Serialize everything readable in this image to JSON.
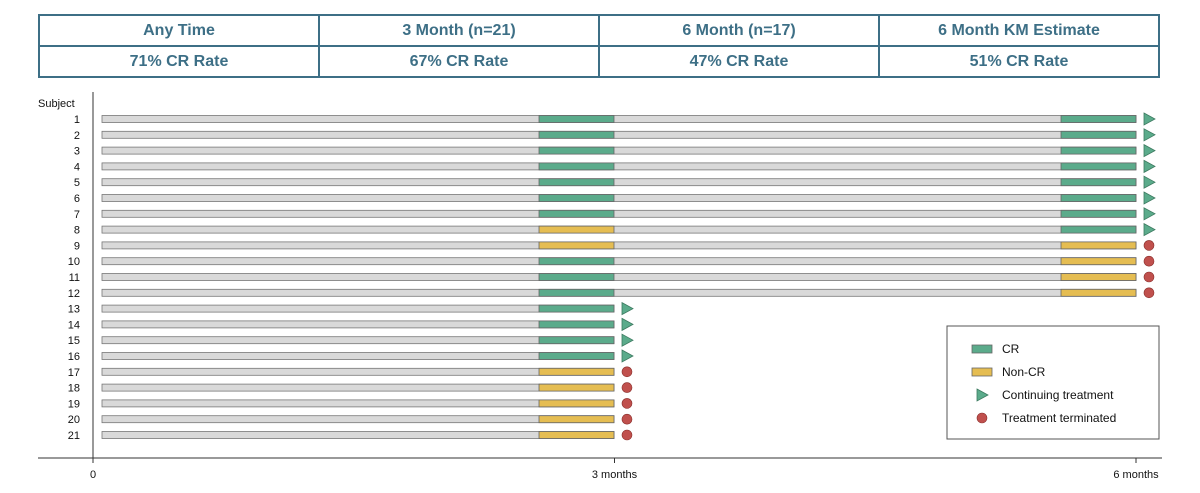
{
  "summary": {
    "headers": [
      "Any Time",
      "3 Month (n=21)",
      "6 Month (n=17)",
      "6 Month KM Estimate"
    ],
    "rates": [
      "71% CR Rate",
      "67% CR Rate",
      "47% CR Rate",
      "51% CR Rate"
    ]
  },
  "chart_data": {
    "type": "swimmer",
    "ylabel": "Subject",
    "x_ticks": [
      {
        "value": 0,
        "label": "0"
      },
      {
        "value": 3,
        "label": "3 months"
      },
      {
        "value": 6,
        "label": "6 months"
      }
    ],
    "xlim": [
      0,
      6
    ],
    "colors": {
      "cr": "#5bab8b",
      "non_cr": "#e5bd52",
      "bar": "#d9d9d9",
      "continuing": "#5bab8b",
      "terminated": "#c0504d"
    },
    "legend": {
      "position": "bottom-right",
      "items": [
        {
          "key": "cr",
          "label": "CR"
        },
        {
          "key": "non_cr",
          "label": "Non-CR"
        },
        {
          "key": "continuing",
          "label": "Continuing treatment"
        },
        {
          "key": "terminated",
          "label": "Treatment terminated"
        }
      ]
    },
    "subjects": [
      {
        "id": "1",
        "end": 6,
        "m3": "cr",
        "m6": "cr",
        "status": "continuing"
      },
      {
        "id": "2",
        "end": 6,
        "m3": "cr",
        "m6": "cr",
        "status": "continuing"
      },
      {
        "id": "3",
        "end": 6,
        "m3": "cr",
        "m6": "cr",
        "status": "continuing"
      },
      {
        "id": "4",
        "end": 6,
        "m3": "cr",
        "m6": "cr",
        "status": "continuing"
      },
      {
        "id": "5",
        "end": 6,
        "m3": "cr",
        "m6": "cr",
        "status": "continuing"
      },
      {
        "id": "6",
        "end": 6,
        "m3": "cr",
        "m6": "cr",
        "status": "continuing"
      },
      {
        "id": "7",
        "end": 6,
        "m3": "cr",
        "m6": "cr",
        "status": "continuing"
      },
      {
        "id": "8",
        "end": 6,
        "m3": "non_cr",
        "m6": "cr",
        "status": "continuing"
      },
      {
        "id": "9",
        "end": 6,
        "m3": "non_cr",
        "m6": "non_cr",
        "status": "terminated"
      },
      {
        "id": "10",
        "end": 6,
        "m3": "cr",
        "m6": "non_cr",
        "status": "terminated"
      },
      {
        "id": "11",
        "end": 6,
        "m3": "cr",
        "m6": "non_cr",
        "status": "terminated"
      },
      {
        "id": "12",
        "end": 6,
        "m3": "cr",
        "m6": "non_cr",
        "status": "terminated"
      },
      {
        "id": "13",
        "end": 3,
        "m3": "cr",
        "m6": null,
        "status": "continuing"
      },
      {
        "id": "14",
        "end": 3,
        "m3": "cr",
        "m6": null,
        "status": "continuing"
      },
      {
        "id": "15",
        "end": 3,
        "m3": "cr",
        "m6": null,
        "status": "continuing"
      },
      {
        "id": "16",
        "end": 3,
        "m3": "cr",
        "m6": null,
        "status": "continuing"
      },
      {
        "id": "17",
        "end": 3,
        "m3": "non_cr",
        "m6": null,
        "status": "terminated"
      },
      {
        "id": "18",
        "end": 3,
        "m3": "non_cr",
        "m6": null,
        "status": "terminated"
      },
      {
        "id": "19",
        "end": 3,
        "m3": "non_cr",
        "m6": null,
        "status": "terminated"
      },
      {
        "id": "20",
        "end": 3,
        "m3": "non_cr",
        "m6": null,
        "status": "terminated"
      },
      {
        "id": "21",
        "end": 3,
        "m3": "non_cr",
        "m6": null,
        "status": "terminated"
      }
    ]
  }
}
